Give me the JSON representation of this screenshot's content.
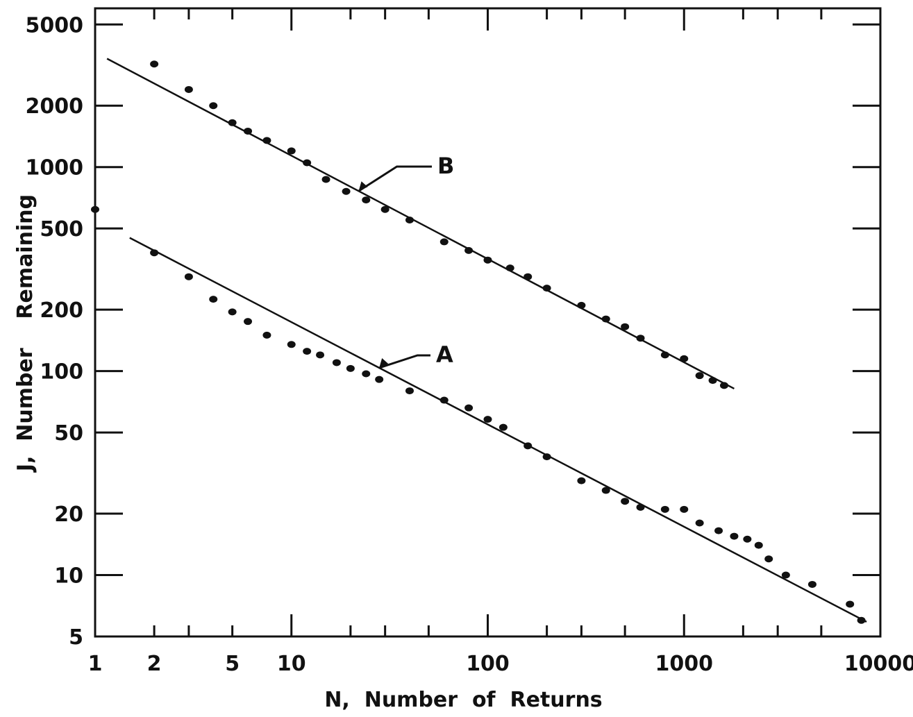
{
  "chart_data": {
    "type": "scatter",
    "x_scale": "log",
    "y_scale": "log",
    "xlim": [
      1,
      10000
    ],
    "ylim": [
      5,
      6000
    ],
    "xlabel": "N,  Number  of  Returns",
    "ylabel": "J,  Number    Remaining",
    "x_ticks": [
      {
        "value": 1,
        "label": "1"
      },
      {
        "value": 2,
        "label": "2"
      },
      {
        "value": 5,
        "label": "5"
      },
      {
        "value": 10,
        "label": "10"
      },
      {
        "value": 100,
        "label": "100"
      },
      {
        "value": 1000,
        "label": "1000"
      },
      {
        "value": 10000,
        "label": "10000"
      }
    ],
    "y_ticks": [
      {
        "value": 5,
        "label": "5"
      },
      {
        "value": 10,
        "label": "10"
      },
      {
        "value": 20,
        "label": "20"
      },
      {
        "value": 50,
        "label": "50"
      },
      {
        "value": 100,
        "label": "100"
      },
      {
        "value": 200,
        "label": "200"
      },
      {
        "value": 500,
        "label": "500"
      },
      {
        "value": 1000,
        "label": "1000"
      },
      {
        "value": 2000,
        "label": "2000"
      },
      {
        "value": 5000,
        "label": "5000"
      }
    ],
    "grid": false,
    "series": [
      {
        "name": "B",
        "points": [
          [
            2,
            3200
          ],
          [
            3,
            2400
          ],
          [
            4,
            2000
          ],
          [
            5,
            1650
          ],
          [
            6,
            1500
          ],
          [
            7.5,
            1350
          ],
          [
            10,
            1200
          ],
          [
            12,
            1050
          ],
          [
            15,
            870
          ],
          [
            19,
            760
          ],
          [
            24,
            690
          ],
          [
            30,
            620
          ],
          [
            40,
            550
          ],
          [
            60,
            430
          ],
          [
            80,
            390
          ],
          [
            100,
            350
          ],
          [
            130,
            320
          ],
          [
            160,
            290
          ],
          [
            200,
            255
          ],
          [
            300,
            210
          ],
          [
            400,
            180
          ],
          [
            500,
            165
          ],
          [
            600,
            145
          ],
          [
            800,
            120
          ],
          [
            1000,
            115
          ],
          [
            1200,
            95
          ],
          [
            1400,
            90
          ],
          [
            1600,
            85
          ]
        ],
        "fit": [
          [
            1.15,
            3400
          ],
          [
            1800,
            82
          ]
        ]
      },
      {
        "name": "A",
        "points": [
          [
            1,
            620
          ],
          [
            2,
            380
          ],
          [
            3,
            290
          ],
          [
            4,
            225
          ],
          [
            5,
            195
          ],
          [
            6,
            175
          ],
          [
            7.5,
            150
          ],
          [
            10,
            135
          ],
          [
            12,
            125
          ],
          [
            14,
            120
          ],
          [
            17,
            110
          ],
          [
            20,
            103
          ],
          [
            24,
            97
          ],
          [
            28,
            91
          ],
          [
            40,
            80
          ],
          [
            60,
            72
          ],
          [
            80,
            66
          ],
          [
            100,
            58
          ],
          [
            120,
            53
          ],
          [
            160,
            43
          ],
          [
            200,
            38
          ],
          [
            300,
            29
          ],
          [
            400,
            26
          ],
          [
            500,
            23
          ],
          [
            600,
            21.5
          ],
          [
            800,
            21
          ],
          [
            1000,
            21
          ],
          [
            1200,
            18
          ],
          [
            1500,
            16.5
          ],
          [
            1800,
            15.5
          ],
          [
            2100,
            15
          ],
          [
            2400,
            14
          ],
          [
            2700,
            12
          ],
          [
            3300,
            10
          ],
          [
            4500,
            9
          ],
          [
            7000,
            7.2
          ],
          [
            8000,
            6
          ]
        ],
        "fit": [
          [
            1.5,
            450
          ],
          [
            8500,
            5.9
          ]
        ]
      }
    ],
    "annotations": [
      {
        "text": "B",
        "series": "B"
      },
      {
        "text": "A",
        "series": "A"
      }
    ]
  }
}
